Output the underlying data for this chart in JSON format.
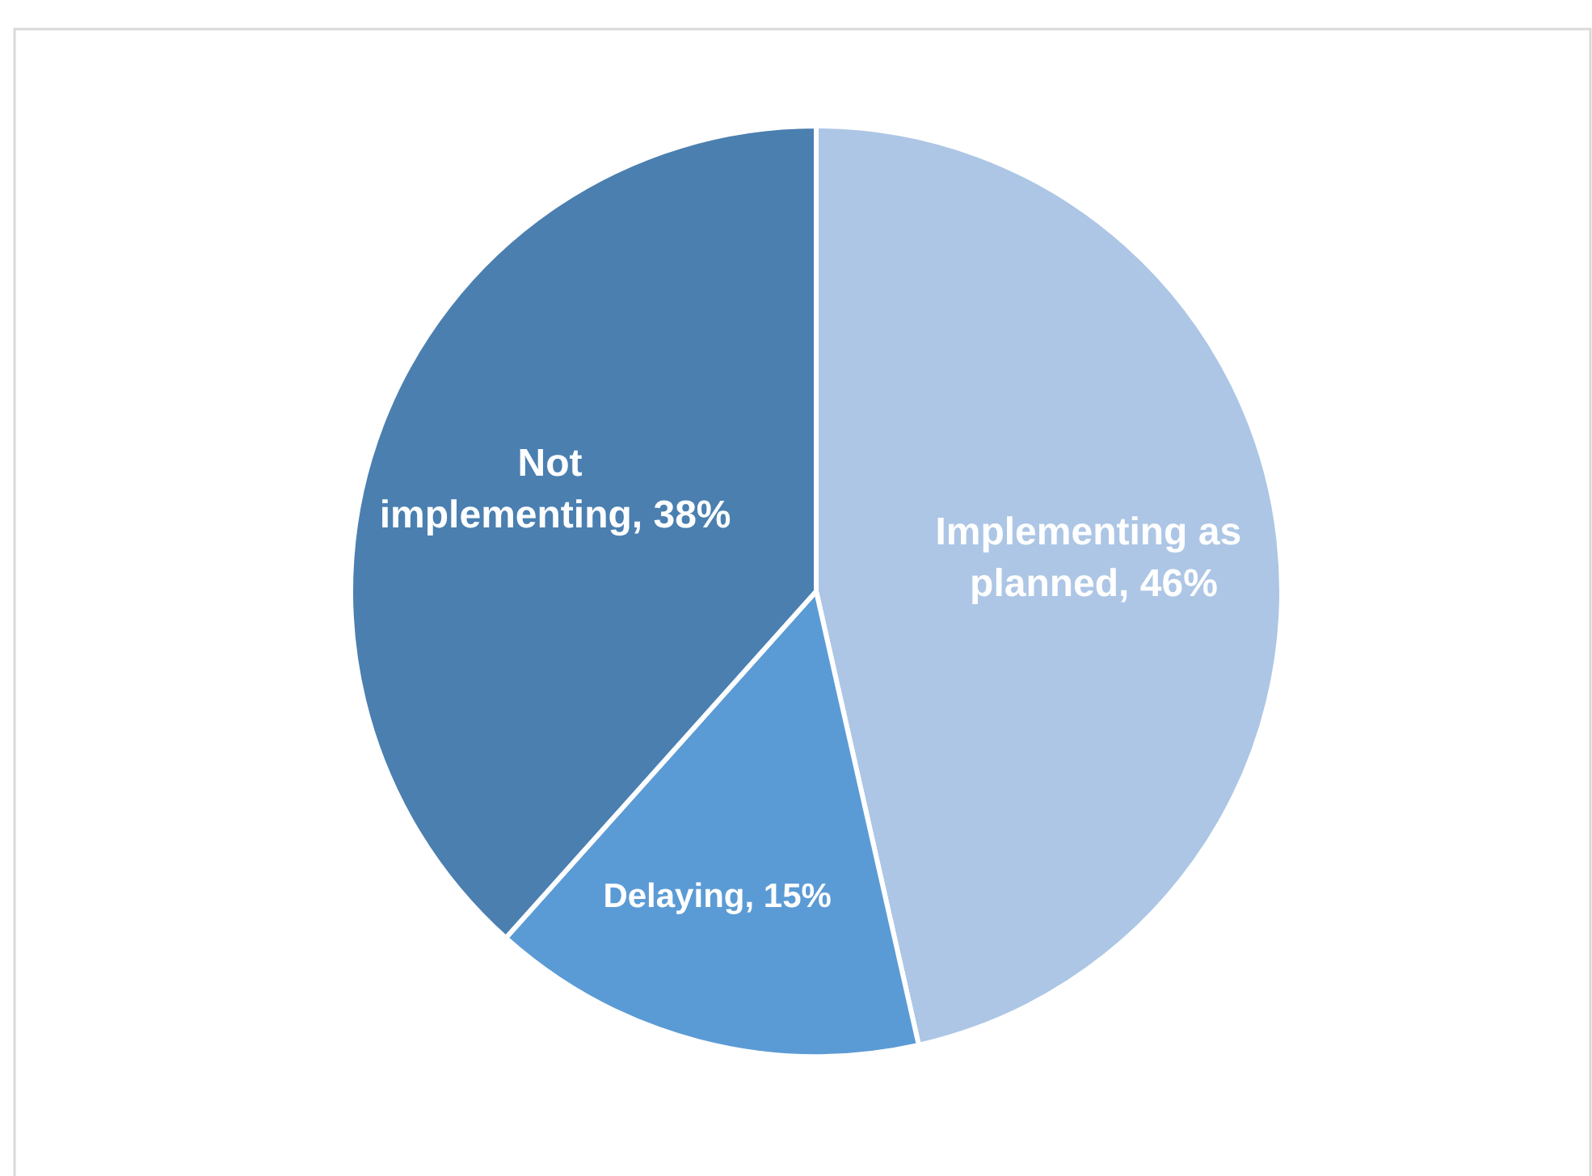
{
  "chart_data": {
    "type": "pie",
    "categories": [
      "Implementing as planned",
      "Delaying",
      "Not implementing"
    ],
    "values": [
      46,
      15,
      38
    ],
    "value_labels": [
      "46%",
      "15%",
      "38%"
    ],
    "colors": [
      "#adc6e5",
      "#5b9bd5",
      "#4a7fb0"
    ]
  }
}
